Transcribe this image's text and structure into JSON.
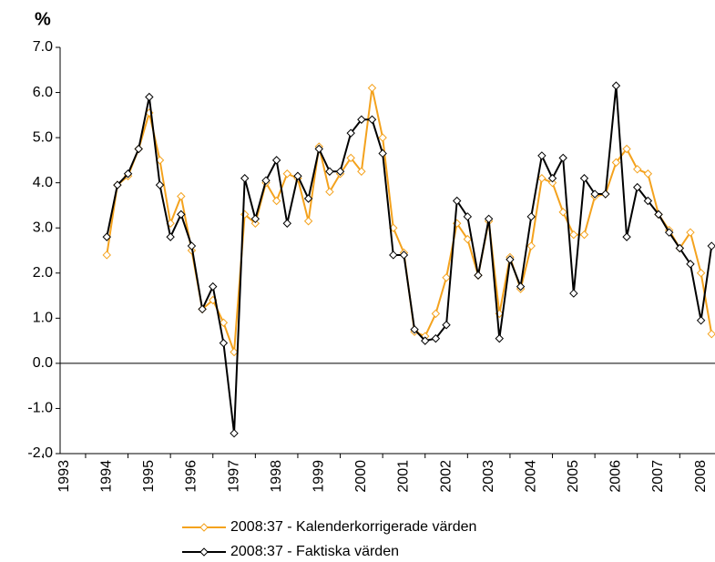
{
  "chart_data": {
    "type": "line",
    "y_label": "%",
    "x": [
      1994,
      1994.25,
      1994.5,
      1994.75,
      1995,
      1995.25,
      1995.5,
      1995.75,
      1996,
      1996.25,
      1996.5,
      1996.75,
      1997,
      1997.25,
      1997.5,
      1997.75,
      1998,
      1998.25,
      1998.5,
      1998.75,
      1999,
      1999.25,
      1999.5,
      1999.75,
      2000,
      2000.25,
      2000.5,
      2000.75,
      2001,
      2001.25,
      2001.5,
      2001.75,
      2002,
      2002.25,
      2002.5,
      2002.75,
      2003,
      2003.25,
      2003.5,
      2003.75,
      2004,
      2004.25,
      2004.5,
      2004.75,
      2005,
      2005.25,
      2005.5,
      2005.75,
      2006,
      2006.25,
      2006.5,
      2006.75,
      2007,
      2007.25,
      2007.5,
      2007.75,
      2008,
      2008.25
    ],
    "series": [
      {
        "name": "2008:37 - Kalenderkorrigerade värden",
        "color": "#f4a21d",
        "values": [
          2.4,
          3.95,
          4.15,
          4.75,
          5.55,
          4.5,
          3.1,
          3.7,
          2.5,
          1.2,
          1.4,
          0.9,
          0.25,
          3.3,
          3.1,
          4.0,
          3.6,
          4.2,
          4.1,
          3.15,
          4.8,
          3.8,
          4.2,
          4.55,
          4.25,
          6.1,
          5.0,
          3.0,
          2.45,
          0.7,
          0.6,
          1.1,
          1.9,
          3.1,
          2.75,
          1.95,
          3.15,
          1.1,
          2.35,
          1.65,
          2.6,
          4.1,
          4.0,
          3.35,
          2.85,
          2.85,
          3.7,
          3.75,
          4.45,
          4.75,
          4.3,
          4.2,
          3.3,
          2.95,
          2.55,
          2.9,
          2.0,
          0.65
        ]
      },
      {
        "name": "2008:37 - Faktiska värden",
        "color": "#000000",
        "values": [
          2.8,
          3.95,
          4.2,
          4.75,
          5.9,
          3.95,
          2.8,
          3.3,
          2.6,
          1.2,
          1.7,
          0.45,
          -1.55,
          4.1,
          3.2,
          4.05,
          4.5,
          3.1,
          4.15,
          3.65,
          4.75,
          4.25,
          4.25,
          5.1,
          5.4,
          5.4,
          4.65,
          2.4,
          2.4,
          0.75,
          0.5,
          0.55,
          0.85,
          3.6,
          3.25,
          1.95,
          3.2,
          0.55,
          2.3,
          1.7,
          3.25,
          4.6,
          4.1,
          4.55,
          1.55,
          4.1,
          3.75,
          3.75,
          6.15,
          2.8,
          3.9,
          3.6,
          3.3,
          2.9,
          2.55,
          2.2,
          0.95,
          2.6
        ]
      }
    ],
    "xlim": [
      1992.9,
      2008.33
    ],
    "xticks": [
      1993,
      1994,
      1995,
      1996,
      1997,
      1998,
      1999,
      2000,
      2001,
      2002,
      2003,
      2004,
      2005,
      2006,
      2007,
      2008
    ],
    "ylim": [
      -2,
      7
    ],
    "yticks": [
      {
        "value": 7,
        "label": "7.0"
      },
      {
        "value": 6,
        "label": "6.0"
      },
      {
        "value": 5,
        "label": "5.0"
      },
      {
        "value": 4,
        "label": "4.0"
      },
      {
        "value": 3,
        "label": "3.0"
      },
      {
        "value": 2,
        "label": "2.0"
      },
      {
        "value": 1,
        "label": "1.0"
      },
      {
        "value": 0,
        "label": "0.0"
      },
      {
        "value": -1,
        "label": "-1.0"
      },
      {
        "value": -2,
        "label": "-2.0"
      }
    ],
    "grid": false,
    "legend": "bottom"
  }
}
